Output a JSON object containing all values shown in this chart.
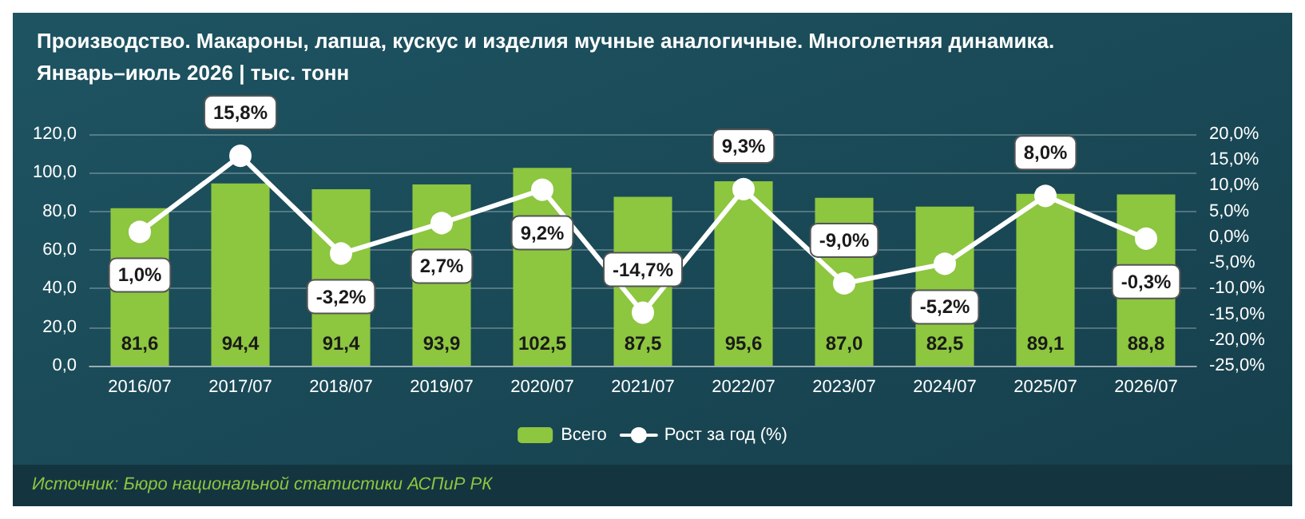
{
  "chart_data": {
    "type": "bar",
    "title": "Производство. Макароны, лапша, кускус и изделия мучные аналогичные. Многолетняя динамика.",
    "subtitle": "Январь–июль 2026 | тыс. тонн",
    "categories": [
      "2016/07",
      "2017/07",
      "2018/07",
      "2019/07",
      "2020/07",
      "2021/07",
      "2022/07",
      "2023/07",
      "2024/07",
      "2025/07",
      "2026/07"
    ],
    "series": [
      {
        "name": "Всего",
        "color": "#8dc63f",
        "values": [
          81.6,
          94.4,
          91.4,
          93.9,
          102.5,
          87.5,
          95.6,
          87.0,
          82.5,
          89.1,
          88.8
        ],
        "value_labels": [
          "81,6",
          "94,4",
          "91,4",
          "93,9",
          "102,5",
          "87,5",
          "95,6",
          "87,0",
          "82,5",
          "89,1",
          "88,8"
        ]
      },
      {
        "name": "Рост за год (%)",
        "type": "line",
        "axis": "y2",
        "color": "#ffffff",
        "values": [
          1.0,
          15.8,
          -3.2,
          2.7,
          9.2,
          -14.7,
          9.3,
          -9.0,
          -5.2,
          8.0,
          -0.3
        ],
        "value_labels": [
          "1,0%",
          "15,8%",
          "-3,2%",
          "2,7%",
          "9,2%",
          "-14,7%",
          "9,3%",
          "-9,0%",
          "-5,2%",
          "8,0%",
          "-0,3%"
        ]
      }
    ],
    "ylim": [
      0,
      120
    ],
    "yticks": [
      {
        "value": 0,
        "label": "0,0"
      },
      {
        "value": 20,
        "label": "20,0"
      },
      {
        "value": 40,
        "label": "40,0"
      },
      {
        "value": 60,
        "label": "60,0"
      },
      {
        "value": 80,
        "label": "80,0"
      },
      {
        "value": 100,
        "label": "100,0"
      },
      {
        "value": 120,
        "label": "120,0"
      }
    ],
    "y2lim": [
      -25,
      20
    ],
    "y2ticks": [
      {
        "value": -25,
        "label": "-25,0%"
      },
      {
        "value": -20,
        "label": "-20,0%"
      },
      {
        "value": -15,
        "label": "-15,0%"
      },
      {
        "value": -10,
        "label": "-10,0%"
      },
      {
        "value": -5,
        "label": "-5,0%"
      },
      {
        "value": 0,
        "label": "0,0%"
      },
      {
        "value": 5,
        "label": "5,0%"
      },
      {
        "value": 10,
        "label": "10,0%"
      },
      {
        "value": 15,
        "label": "15,0%"
      },
      {
        "value": 20,
        "label": "20,0%"
      }
    ],
    "grid": "y",
    "legend": "bottom",
    "marker": "circle",
    "line_style": "solid",
    "annotations": [
      "Источник: Бюро национальной статистики АСПиР РК"
    ]
  }
}
